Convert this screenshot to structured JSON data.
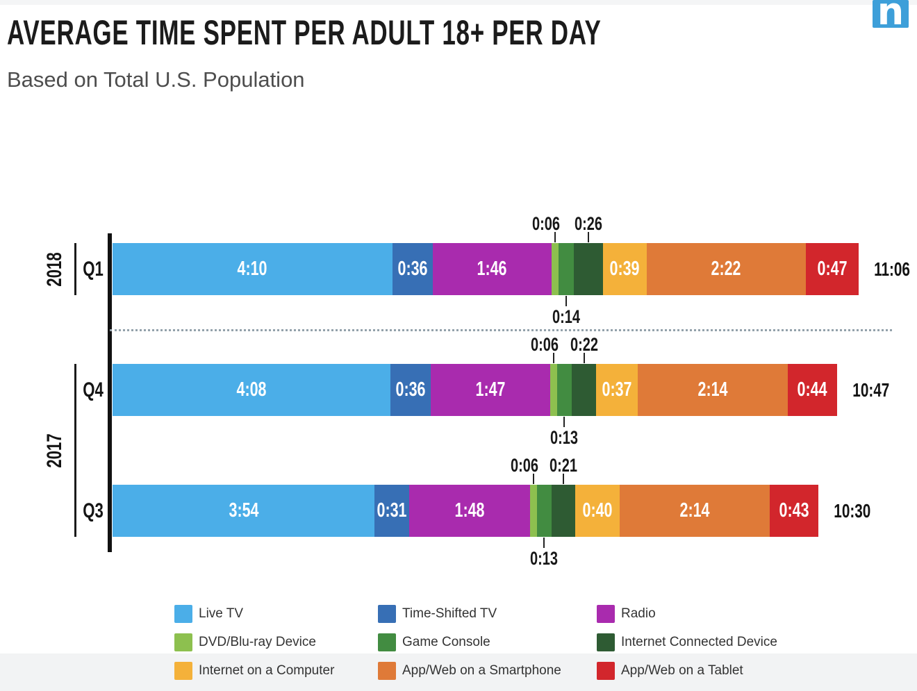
{
  "header": {
    "title": "AVERAGE TIME SPENT PER ADULT 18+ PER DAY",
    "subtitle": "Based on Total U.S. Population",
    "logo_letter": "n"
  },
  "chart_data": {
    "type": "bar",
    "variant": "horizontal-stacked",
    "value_format": "h:mm per day",
    "legend_position": "bottom",
    "grid": false,
    "series": [
      {
        "name": "Live TV",
        "color": "#4BAEE8"
      },
      {
        "name": "Time-Shifted TV",
        "color": "#376FB5"
      },
      {
        "name": "Radio",
        "color": "#A92BAE"
      },
      {
        "name": "DVD/Blu-ray Device",
        "color": "#8DC04F"
      },
      {
        "name": "Game Console",
        "color": "#428C41"
      },
      {
        "name": "Internet Connected Device",
        "color": "#2E5B33"
      },
      {
        "name": "Internet on a Computer",
        "color": "#F4B13A"
      },
      {
        "name": "App/Web on a Smartphone",
        "color": "#DF7A38"
      },
      {
        "name": "App/Web on a Tablet",
        "color": "#D2262C"
      }
    ],
    "rows": [
      {
        "group": "2018",
        "quarter": "Q1",
        "values": [
          "4:10",
          "0:36",
          "1:46",
          "0:06",
          "0:14",
          "0:26",
          "0:39",
          "2:22",
          "0:47"
        ],
        "total": "11:06"
      },
      {
        "group": "2017",
        "quarter": "Q4",
        "values": [
          "4:08",
          "0:36",
          "1:47",
          "0:06",
          "0:13",
          "0:22",
          "0:37",
          "2:14",
          "0:44"
        ],
        "total": "10:47"
      },
      {
        "group": "2017",
        "quarter": "Q3",
        "values": [
          "3:54",
          "0:31",
          "1:48",
          "0:06",
          "0:13",
          "0:21",
          "0:40",
          "2:14",
          "0:43"
        ],
        "total": "10:30"
      }
    ],
    "callout_segments": {
      "3": "above",
      "4": "below",
      "5": "above"
    }
  }
}
